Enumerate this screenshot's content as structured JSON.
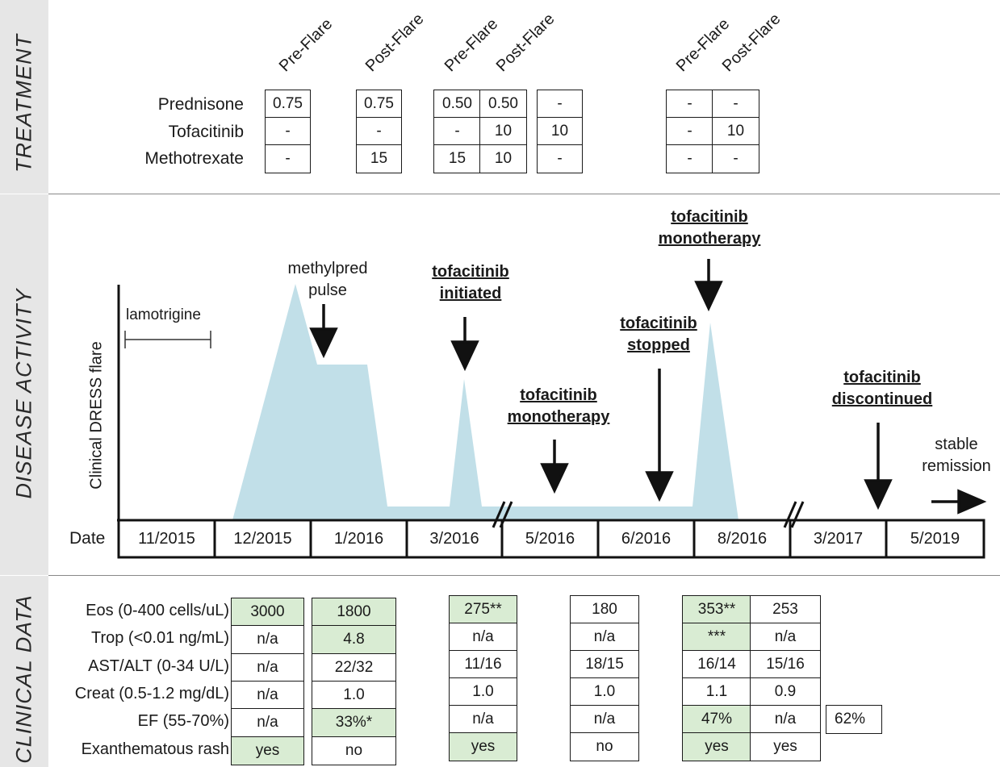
{
  "sections": {
    "treatment": "TREATMENT",
    "disease": "DISEASE ACTIVITY",
    "clinical": "CLINICAL DATA"
  },
  "treatment": {
    "drugs": [
      "Prednisone",
      "Tofacitinib",
      "Methotrexate"
    ],
    "col_headers": [
      "Pre-Flare",
      "Post-Flare",
      "Pre-Flare",
      "Post-Flare",
      "Pre-Flare",
      "Post-Flare"
    ],
    "col1": [
      "0.75",
      "-",
      "-"
    ],
    "col2": [
      "0.75",
      "-",
      "15"
    ],
    "col3a": [
      "0.50",
      "-",
      "15"
    ],
    "col3b": [
      "0.50",
      "10",
      "10"
    ],
    "col4": [
      "-",
      "10",
      "-"
    ],
    "col5a": [
      "-",
      "-",
      "-"
    ],
    "col5b": [
      "-",
      "10",
      "-"
    ]
  },
  "disease": {
    "y_axis_label": "Clinical DRESS flare",
    "lamotrigine": "lamotrigine",
    "methylpred": [
      "methylpred",
      "pulse"
    ],
    "tofa_initiated": [
      "tofacitinib ",
      "initiated"
    ],
    "tofa_mono1": [
      "tofacitinib",
      "monotherapy"
    ],
    "tofa_stopped": [
      "tofacitinib",
      "stopped"
    ],
    "tofa_mono2": [
      "tofacitinib",
      "monotherapy"
    ],
    "tofa_discontinued": [
      "tofacitinib",
      "discontinued"
    ],
    "stable": [
      "stable",
      "remission"
    ],
    "date_label": "Date",
    "dates": [
      "11/2015",
      "12/2015",
      "1/2016",
      "3/2016",
      "5/2016",
      "6/2016",
      "8/2016",
      "3/2017",
      "5/2019"
    ],
    "fill_color": "#c1dfe8"
  },
  "clinical": {
    "labels": [
      "Eos (0-400 cells/uL)",
      "Trop (<0.01 ng/mL)",
      "AST/ALT (0-34 U/L)",
      "Creat (0.5-1.2 mg/dL)",
      "EF (55-70%)",
      "Exanthematous rash"
    ],
    "c1": [
      "3000",
      "n/a",
      "n/a",
      "n/a",
      "n/a",
      "yes"
    ],
    "c2": [
      "1800",
      "4.8",
      "22/32",
      "1.0",
      "33%*",
      "no"
    ],
    "c3": [
      "275**",
      "n/a",
      "11/16",
      "1.0",
      "n/a",
      "yes"
    ],
    "c4": [
      "180",
      "n/a",
      "18/15",
      "1.0",
      "n/a",
      "no"
    ],
    "c5": [
      "353**",
      "***",
      "16/14",
      "1.1",
      "47%",
      "yes"
    ],
    "c6": [
      "253",
      "n/a",
      "15/16",
      "0.9",
      "n/a",
      "yes"
    ],
    "c7": "62%",
    "highlight_color": "#d9ecd3"
  }
}
